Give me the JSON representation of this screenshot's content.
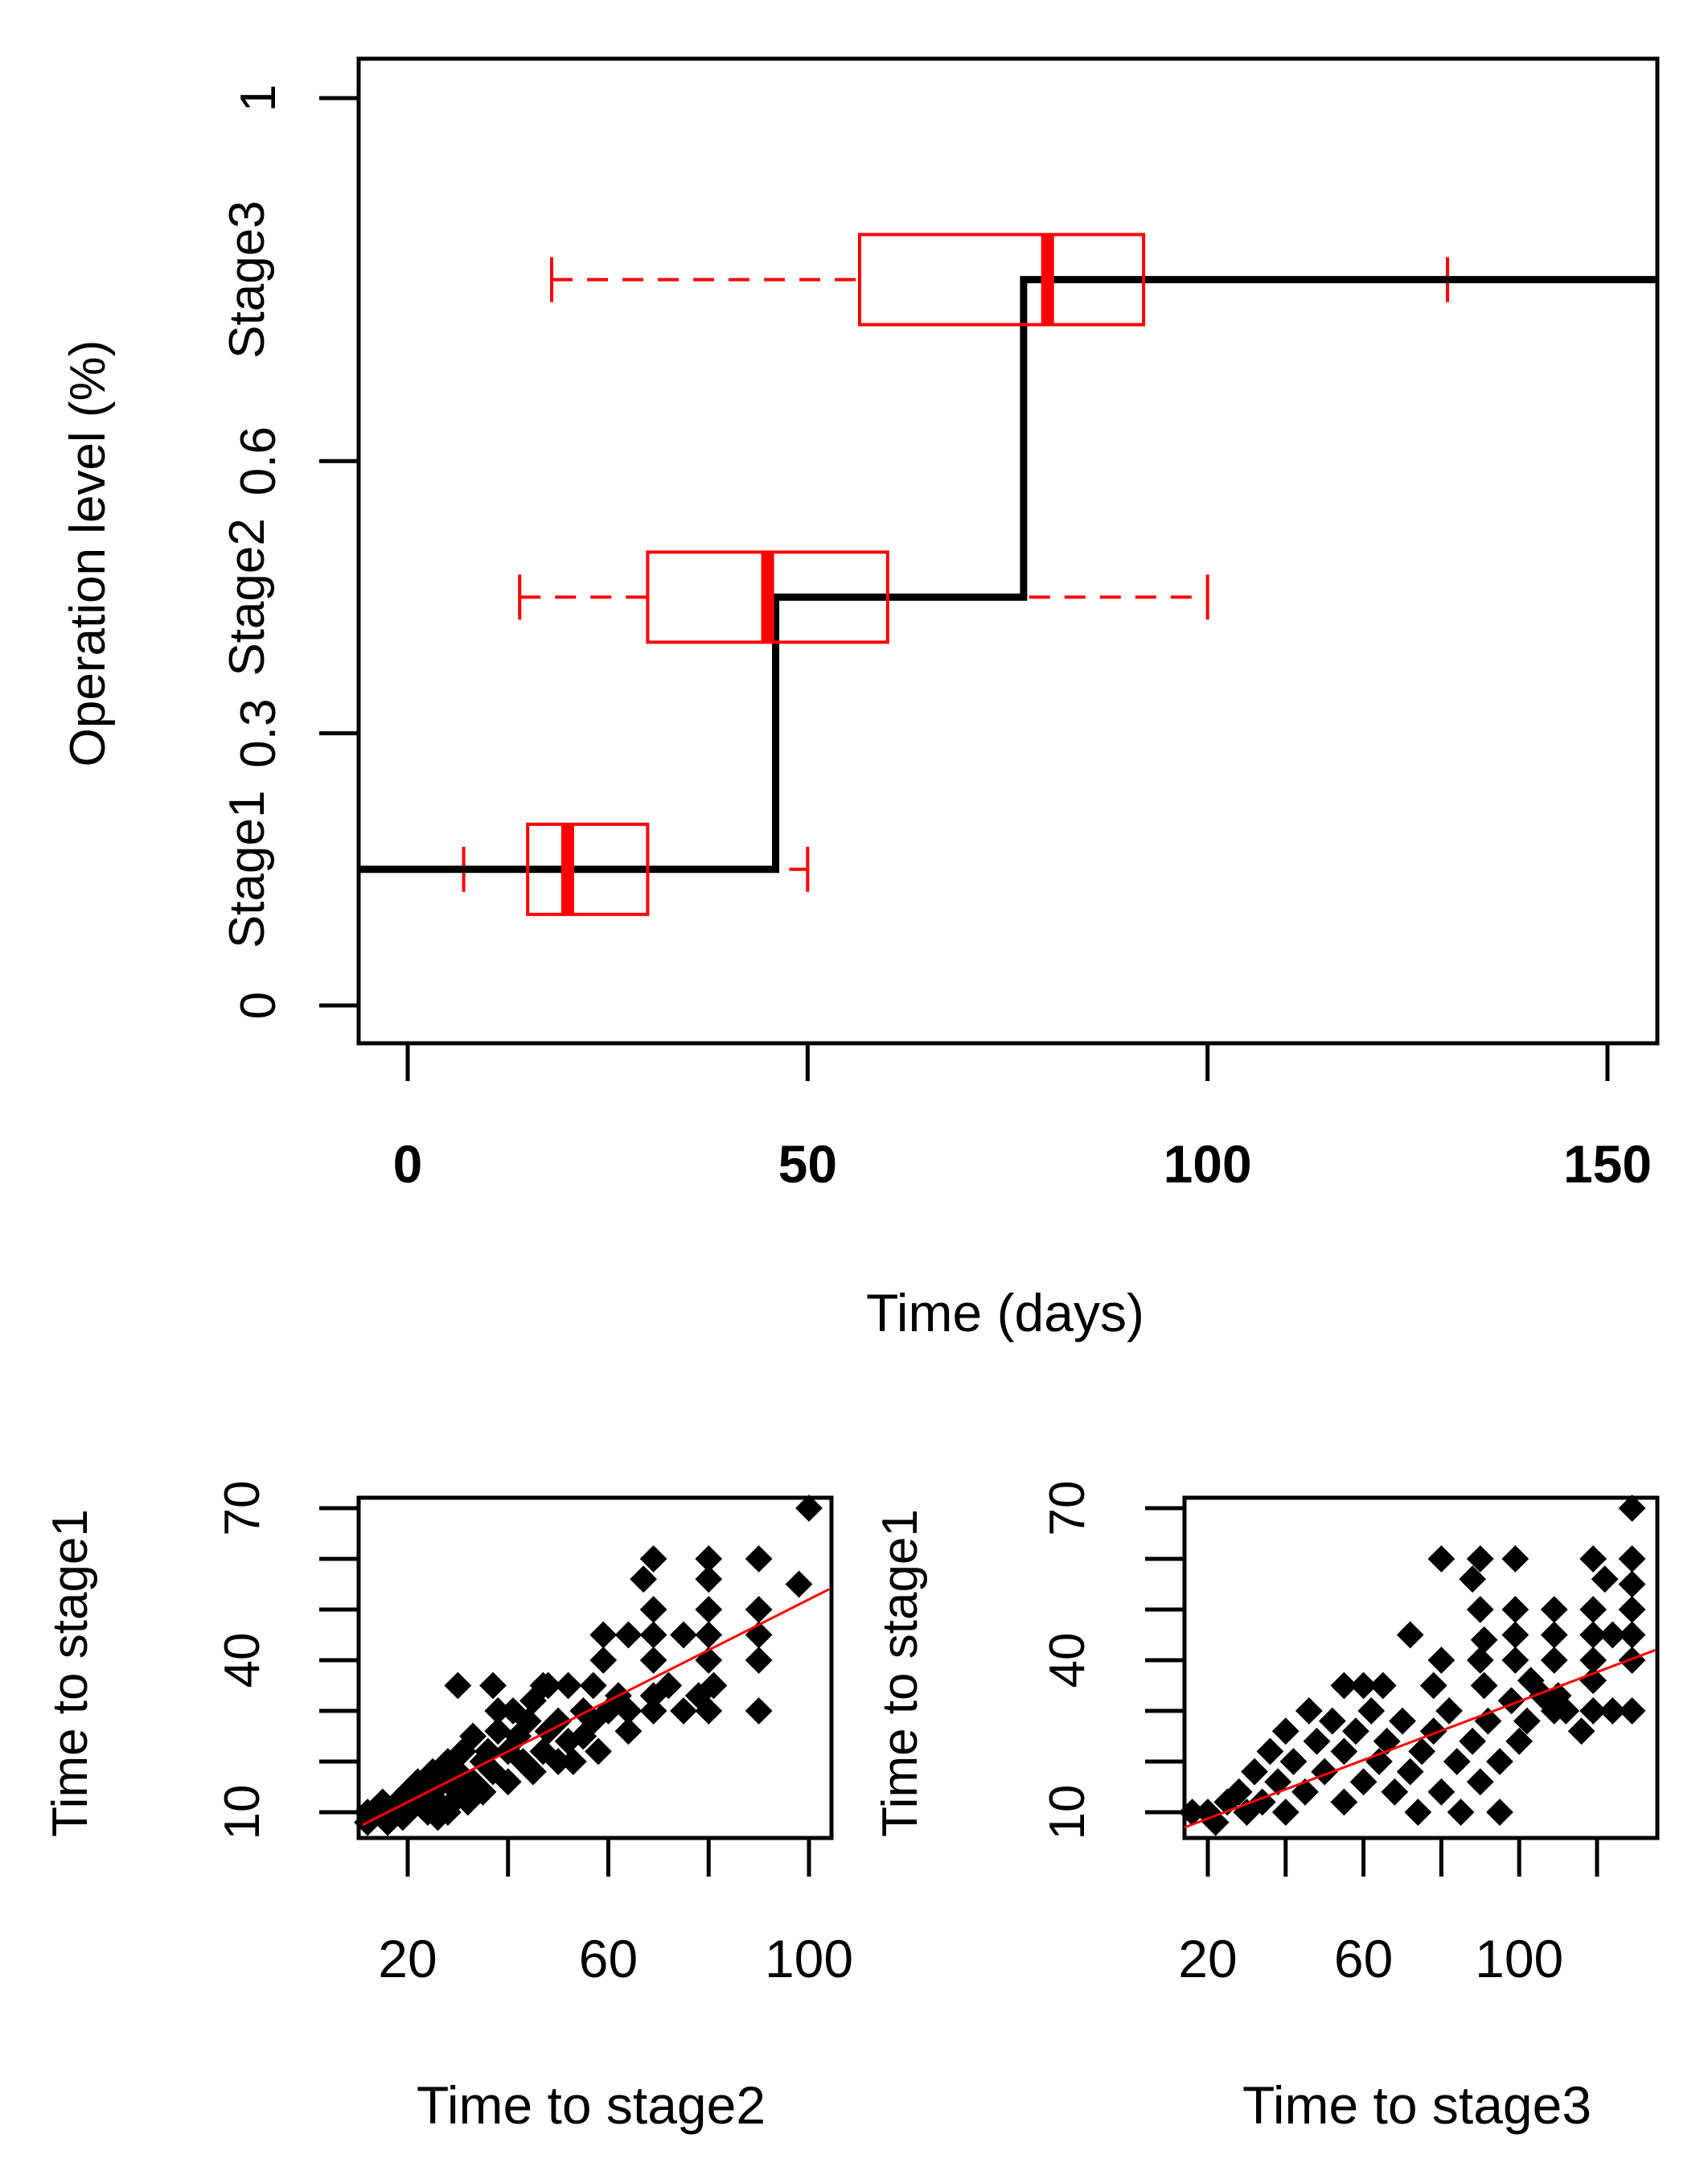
{
  "chart_data": [
    {
      "type": "step-line with horizontal boxplots",
      "xlabel": "Time (days)",
      "ylabel": "Operation level (%)",
      "xlim": [
        -6,
        156
      ],
      "ylim": [
        -0.04,
        1.04
      ],
      "xticks": [
        0,
        50,
        100,
        150
      ],
      "xtick_labels": [
        "0",
        "50",
        "100",
        "150"
      ],
      "yticks": [
        0,
        0.3,
        0.6,
        1
      ],
      "ytick_labels": [
        "0",
        "0.3",
        "0.6",
        "1"
      ],
      "stage_labels": [
        {
          "label": "Stage1",
          "y": 0.15
        },
        {
          "label": "Stage2",
          "y": 0.45
        },
        {
          "label": "Stage3",
          "y": 0.8
        }
      ],
      "step_line": {
        "color": "#000000",
        "points": [
          [
            -6,
            0.15
          ],
          [
            46,
            0.15
          ],
          [
            46,
            0.45
          ],
          [
            77,
            0.45
          ],
          [
            77,
            0.8
          ],
          [
            156,
            0.8
          ]
        ]
      },
      "boxplots": {
        "color": "#ff0000",
        "items": [
          {
            "stage": "Stage1",
            "y": 0.15,
            "whisker_low": 7,
            "q1": 15,
            "median": 20,
            "q3": 30,
            "whisker_high": 50
          },
          {
            "stage": "Stage2",
            "y": 0.45,
            "whisker_low": 14,
            "q1": 30,
            "median": 45,
            "q3": 60,
            "whisker_high": 100
          },
          {
            "stage": "Stage3",
            "y": 0.8,
            "whisker_low": 18,
            "q1": 56.5,
            "median": 80,
            "q3": 92,
            "whisker_high": 130
          }
        ]
      }
    },
    {
      "type": "scatter",
      "xlabel": "Time to stage2",
      "ylabel": "Time to stage1",
      "xlim": [
        11,
        104
      ],
      "ylim": [
        6,
        72
      ],
      "xticks": [
        20,
        40,
        60,
        80,
        100
      ],
      "xtick_labels": [
        "20",
        "60",
        "100"
      ],
      "xtick_label_values": [
        20,
        60,
        100
      ],
      "yticks": [
        10,
        20,
        30,
        40,
        50,
        60,
        70
      ],
      "ytick_labels": [
        "10",
        "40",
        "70"
      ],
      "ytick_label_values": [
        10,
        40,
        70
      ],
      "fit_line": {
        "color": "#ff0000",
        "from": [
          11,
          7.5
        ],
        "to": [
          104,
          54
        ]
      },
      "points": [
        [
          12,
          8
        ],
        [
          12,
          10
        ],
        [
          14,
          10
        ],
        [
          15,
          12
        ],
        [
          17,
          10
        ],
        [
          18,
          12
        ],
        [
          20,
          10
        ],
        [
          20,
          14
        ],
        [
          22,
          12
        ],
        [
          22,
          16
        ],
        [
          24,
          10
        ],
        [
          24,
          14
        ],
        [
          25,
          18
        ],
        [
          26,
          12
        ],
        [
          27,
          16
        ],
        [
          28,
          20
        ],
        [
          28,
          10
        ],
        [
          30,
          14
        ],
        [
          30,
          18
        ],
        [
          31,
          22
        ],
        [
          32,
          12
        ],
        [
          33,
          16
        ],
        [
          33,
          25
        ],
        [
          35,
          20
        ],
        [
          35,
          14
        ],
        [
          36,
          22
        ],
        [
          37,
          18
        ],
        [
          38,
          26
        ],
        [
          38,
          30
        ],
        [
          40,
          16
        ],
        [
          40,
          22
        ],
        [
          41,
          30
        ],
        [
          42,
          25
        ],
        [
          43,
          20
        ],
        [
          44,
          28
        ],
        [
          45,
          18
        ],
        [
          45,
          32
        ],
        [
          47,
          22
        ],
        [
          48,
          26
        ],
        [
          48,
          35
        ],
        [
          50,
          28
        ],
        [
          50,
          20
        ],
        [
          52,
          35
        ],
        [
          52,
          24
        ],
        [
          53,
          20
        ],
        [
          55,
          25
        ],
        [
          55,
          30
        ],
        [
          57,
          28
        ],
        [
          57,
          35
        ],
        [
          58,
          22
        ],
        [
          59,
          40
        ],
        [
          59,
          45
        ],
        [
          60,
          30
        ],
        [
          62,
          33
        ],
        [
          64,
          26
        ],
        [
          64,
          30
        ],
        [
          64,
          45
        ],
        [
          67,
          56
        ],
        [
          69,
          60
        ],
        [
          69,
          50
        ],
        [
          69,
          45
        ],
        [
          69,
          40
        ],
        [
          69,
          33
        ],
        [
          69,
          30
        ],
        [
          72,
          35
        ],
        [
          75,
          45
        ],
        [
          75,
          30
        ],
        [
          78,
          33
        ],
        [
          80,
          60
        ],
        [
          80,
          56
        ],
        [
          80,
          50
        ],
        [
          80,
          45
        ],
        [
          80,
          40
        ],
        [
          80,
          30
        ],
        [
          81,
          35
        ],
        [
          90,
          60
        ],
        [
          90,
          50
        ],
        [
          90,
          45
        ],
        [
          90,
          40
        ],
        [
          90,
          30
        ],
        [
          98,
          55
        ],
        [
          100,
          70
        ],
        [
          47,
          35
        ],
        [
          30,
          35
        ],
        [
          37,
          35
        ],
        [
          16,
          8
        ],
        [
          19,
          9
        ],
        [
          26,
          9
        ],
        [
          29,
          12
        ],
        [
          23,
          11
        ]
      ]
    },
    {
      "type": "scatter",
      "xlabel": "Time to stage3",
      "ylabel": "Time to stage1",
      "xlim": [
        14,
        135
      ],
      "ylim": [
        6,
        72
      ],
      "xticks": [
        20,
        40,
        60,
        80,
        100,
        120
      ],
      "xtick_labels": [
        "20",
        "60",
        "100"
      ],
      "xtick_label_values": [
        20,
        60,
        100
      ],
      "yticks": [
        10,
        20,
        30,
        40,
        50,
        60,
        70
      ],
      "ytick_labels": [
        "10",
        "40",
        "70"
      ],
      "ytick_label_values": [
        10,
        40,
        70
      ],
      "fit_line": {
        "color": "#ff0000",
        "from": [
          14,
          7
        ],
        "to": [
          135,
          42
        ]
      },
      "points": [
        [
          129,
          70
        ],
        [
          80,
          60
        ],
        [
          90,
          60
        ],
        [
          99,
          60
        ],
        [
          119,
          60
        ],
        [
          129,
          60
        ],
        [
          88,
          56
        ],
        [
          122,
          56
        ],
        [
          129,
          55
        ],
        [
          90,
          50
        ],
        [
          99,
          50
        ],
        [
          109,
          50
        ],
        [
          119,
          50
        ],
        [
          129,
          50
        ],
        [
          72,
          45
        ],
        [
          91,
          44
        ],
        [
          99,
          45
        ],
        [
          109,
          45
        ],
        [
          119,
          45
        ],
        [
          124,
          45
        ],
        [
          129,
          45
        ],
        [
          80,
          40
        ],
        [
          90,
          40
        ],
        [
          99,
          40
        ],
        [
          109,
          40
        ],
        [
          119,
          40
        ],
        [
          129,
          40
        ],
        [
          55,
          35
        ],
        [
          60,
          35
        ],
        [
          65,
          35
        ],
        [
          78,
          35
        ],
        [
          91,
          35
        ],
        [
          103,
          36
        ],
        [
          119,
          36
        ],
        [
          110,
          33
        ],
        [
          109,
          30
        ],
        [
          119,
          30
        ],
        [
          124,
          30
        ],
        [
          129,
          30
        ],
        [
          116,
          26
        ],
        [
          16,
          10
        ],
        [
          20,
          10
        ],
        [
          22,
          8
        ],
        [
          25,
          12
        ],
        [
          28,
          14
        ],
        [
          30,
          10
        ],
        [
          32,
          18
        ],
        [
          34,
          12
        ],
        [
          36,
          22
        ],
        [
          38,
          16
        ],
        [
          40,
          26
        ],
        [
          40,
          10
        ],
        [
          42,
          20
        ],
        [
          45,
          14
        ],
        [
          46,
          30
        ],
        [
          48,
          24
        ],
        [
          50,
          18
        ],
        [
          52,
          28
        ],
        [
          55,
          12
        ],
        [
          55,
          22
        ],
        [
          58,
          26
        ],
        [
          60,
          16
        ],
        [
          62,
          30
        ],
        [
          64,
          20
        ],
        [
          66,
          24
        ],
        [
          68,
          14
        ],
        [
          70,
          28
        ],
        [
          72,
          18
        ],
        [
          74,
          10
        ],
        [
          75,
          22
        ],
        [
          78,
          26
        ],
        [
          80,
          14
        ],
        [
          82,
          30
        ],
        [
          84,
          20
        ],
        [
          85,
          10
        ],
        [
          88,
          24
        ],
        [
          90,
          16
        ],
        [
          92,
          28
        ],
        [
          95,
          20
        ],
        [
          95,
          10
        ],
        [
          98,
          32
        ],
        [
          100,
          24
        ],
        [
          102,
          28
        ],
        [
          106,
          33
        ],
        [
          112,
          30
        ]
      ]
    }
  ]
}
